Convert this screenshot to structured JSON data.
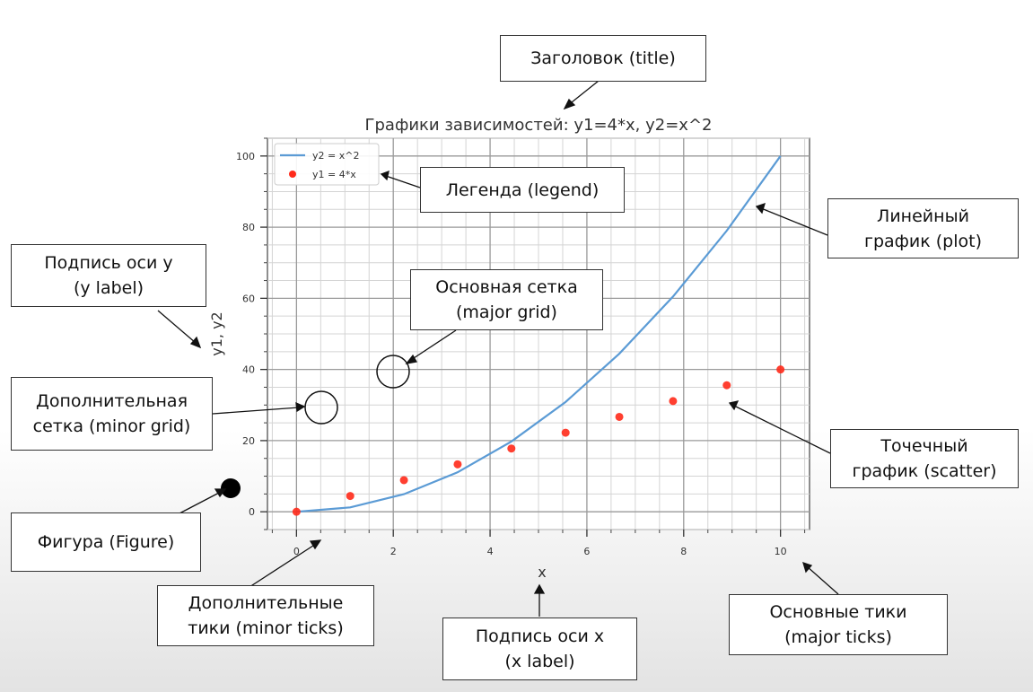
{
  "chart_data": {
    "type": "line",
    "title": "Графики зависимостей: y1=4*x, y2=x^2",
    "xlabel": "x",
    "ylabel": "y1, y2",
    "xlim": [
      -0.6,
      10.6
    ],
    "ylim": [
      -5,
      105
    ],
    "x_ticks": [
      "0",
      "2",
      "4",
      "6",
      "8",
      "10"
    ],
    "y_ticks": [
      "0",
      "20",
      "40",
      "60",
      "80",
      "100"
    ],
    "grid": "major and minor",
    "legend_position": "top-left",
    "x": [
      0,
      1.11,
      2.22,
      3.33,
      4.44,
      5.56,
      6.67,
      7.78,
      8.89,
      10
    ],
    "series": [
      {
        "name": "y2 = x^2",
        "kind": "line",
        "color": "#5b9bd5",
        "values": [
          0,
          1.23,
          4.94,
          11.11,
          19.75,
          30.86,
          44.44,
          60.49,
          79.01,
          100
        ]
      },
      {
        "name": "y1 = 4*x",
        "kind": "scatter",
        "color": "#ff2a1a",
        "values": [
          0,
          4.44,
          8.89,
          13.33,
          17.78,
          22.22,
          26.67,
          31.11,
          35.56,
          40
        ]
      }
    ]
  },
  "annotations": [
    {
      "key": "title",
      "text": "Заголовок (title)"
    },
    {
      "key": "legend",
      "text": "Легенда (legend)"
    },
    {
      "key": "plot",
      "text": "Линейный\nграфик (plot)"
    },
    {
      "key": "ylabel",
      "text": "Подпись оси y\n(y label)"
    },
    {
      "key": "major_grid",
      "text": "Основная сетка\n(major grid)"
    },
    {
      "key": "minor_grid",
      "text": "Дополнительная\nсетка (minor grid)"
    },
    {
      "key": "scatter",
      "text": "Точечный\nграфик (scatter)"
    },
    {
      "key": "figure",
      "text": "Фигура (Figure)"
    },
    {
      "key": "minor_ticks",
      "text": "Дополнительные\nтики (minor ticks)"
    },
    {
      "key": "xlabel",
      "text": "Подпись оси x\n(x label)"
    },
    {
      "key": "major_ticks",
      "text": "Основные тики\n(major ticks)"
    }
  ]
}
